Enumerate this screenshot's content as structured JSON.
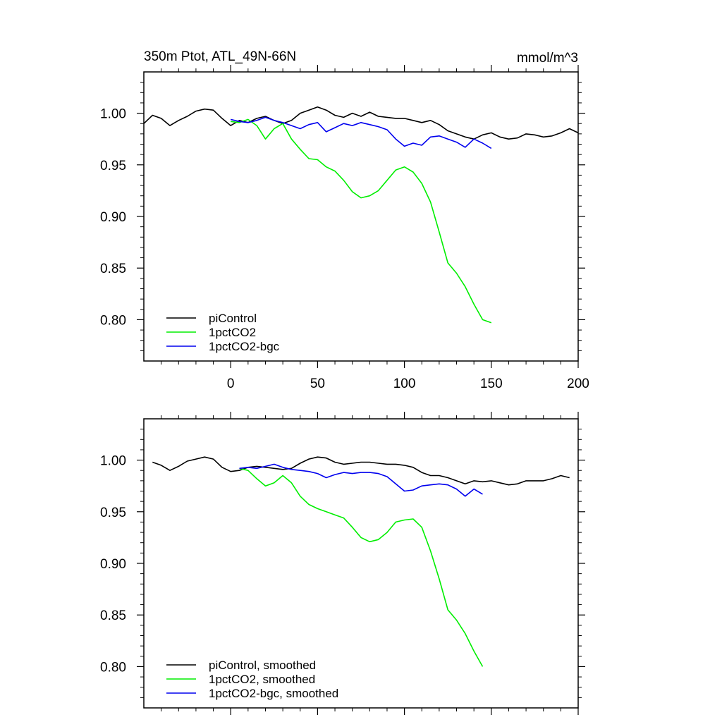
{
  "chart_data": [
    {
      "type": "line",
      "title": "350m Ptot, ATL_49N-66N",
      "units": "mmol/m^3",
      "xlim": [
        -50,
        200
      ],
      "ylim": [
        0.76,
        1.04
      ],
      "xticks": [
        0,
        50,
        100,
        150,
        200
      ],
      "yticks": [
        0.8,
        0.85,
        0.9,
        0.95,
        1.0
      ],
      "ytick_labels": [
        "0.80",
        "0.85",
        "0.90",
        "0.95",
        "1.00"
      ],
      "legend_position": "bottom-left",
      "series": [
        {
          "name": "piControl",
          "color": "#000000",
          "x": [
            -50,
            -45,
            -40,
            -35,
            -30,
            -25,
            -20,
            -15,
            -10,
            -5,
            0,
            5,
            10,
            15,
            20,
            25,
            30,
            35,
            40,
            45,
            50,
            55,
            60,
            65,
            70,
            75,
            80,
            85,
            90,
            95,
            100,
            105,
            110,
            115,
            120,
            125,
            130,
            135,
            140,
            145,
            150,
            155,
            160,
            165,
            170,
            175,
            180,
            185,
            190,
            195,
            200
          ],
          "values": [
            0.99,
            0.998,
            0.995,
            0.988,
            0.993,
            0.997,
            1.002,
            1.004,
            1.003,
            0.995,
            0.988,
            0.993,
            0.991,
            0.995,
            0.997,
            0.993,
            0.99,
            0.993,
            1.0,
            1.003,
            1.006,
            1.003,
            0.998,
            0.996,
            1.0,
            0.997,
            1.001,
            0.997,
            0.996,
            0.995,
            0.995,
            0.993,
            0.991,
            0.993,
            0.989,
            0.983,
            0.98,
            0.977,
            0.975,
            0.979,
            0.981,
            0.977,
            0.975,
            0.976,
            0.98,
            0.979,
            0.977,
            0.978,
            0.981,
            0.985,
            0.981
          ]
        },
        {
          "name": "1pctCO2",
          "color": "#00ee00",
          "x": [
            0,
            5,
            10,
            15,
            20,
            25,
            30,
            35,
            40,
            45,
            50,
            55,
            60,
            65,
            70,
            75,
            80,
            85,
            90,
            95,
            100,
            105,
            110,
            115,
            120,
            125,
            130,
            135,
            140,
            145,
            150
          ],
          "values": [
            0.992,
            0.991,
            0.994,
            0.988,
            0.975,
            0.985,
            0.99,
            0.975,
            0.965,
            0.956,
            0.955,
            0.948,
            0.944,
            0.935,
            0.924,
            0.918,
            0.92,
            0.925,
            0.935,
            0.945,
            0.948,
            0.943,
            0.932,
            0.914,
            0.885,
            0.855,
            0.845,
            0.832,
            0.815,
            0.8,
            0.797
          ]
        },
        {
          "name": "1pctCO2-bgc",
          "color": "#0000ee",
          "x": [
            0,
            5,
            10,
            15,
            20,
            25,
            30,
            35,
            40,
            45,
            50,
            55,
            60,
            65,
            70,
            75,
            80,
            85,
            90,
            95,
            100,
            105,
            110,
            115,
            120,
            125,
            130,
            135,
            140,
            145,
            150
          ],
          "values": [
            0.994,
            0.992,
            0.991,
            0.993,
            0.996,
            0.993,
            0.991,
            0.988,
            0.985,
            0.989,
            0.991,
            0.982,
            0.986,
            0.99,
            0.988,
            0.991,
            0.989,
            0.987,
            0.984,
            0.975,
            0.968,
            0.971,
            0.969,
            0.977,
            0.978,
            0.975,
            0.972,
            0.967,
            0.975,
            0.971,
            0.966
          ]
        }
      ]
    },
    {
      "type": "line",
      "xlim": [
        -50,
        200
      ],
      "ylim": [
        0.76,
        1.04
      ],
      "xticks": [
        0,
        50,
        100,
        150,
        200
      ],
      "yticks": [
        0.8,
        0.85,
        0.9,
        0.95,
        1.0
      ],
      "ytick_labels": [
        "0.80",
        "0.85",
        "0.90",
        "0.95",
        "1.00"
      ],
      "legend_position": "bottom-left",
      "series": [
        {
          "name": "piControl, smoothed",
          "color": "#000000",
          "x": [
            -45,
            -40,
            -35,
            -30,
            -25,
            -20,
            -15,
            -10,
            -5,
            0,
            5,
            10,
            15,
            20,
            25,
            30,
            35,
            40,
            45,
            50,
            55,
            60,
            65,
            70,
            75,
            80,
            85,
            90,
            95,
            100,
            105,
            110,
            115,
            120,
            125,
            130,
            135,
            140,
            145,
            150,
            155,
            160,
            165,
            170,
            175,
            180,
            185,
            190,
            195
          ],
          "values": [
            0.998,
            0.995,
            0.99,
            0.994,
            0.999,
            1.001,
            1.003,
            1.001,
            0.993,
            0.989,
            0.99,
            0.993,
            0.994,
            0.993,
            0.992,
            0.991,
            0.992,
            0.997,
            1.001,
            1.003,
            1.002,
            0.998,
            0.996,
            0.997,
            0.998,
            0.998,
            0.997,
            0.996,
            0.996,
            0.995,
            0.993,
            0.988,
            0.985,
            0.985,
            0.983,
            0.98,
            0.977,
            0.98,
            0.979,
            0.98,
            0.978,
            0.976,
            0.977,
            0.98,
            0.98,
            0.98,
            0.982,
            0.985,
            0.983
          ]
        },
        {
          "name": "1pctCO2, smoothed",
          "color": "#00ee00",
          "x": [
            5,
            10,
            15,
            20,
            25,
            30,
            35,
            40,
            45,
            50,
            55,
            60,
            65,
            70,
            75,
            80,
            85,
            90,
            95,
            100,
            105,
            110,
            115,
            120,
            125,
            130,
            135,
            140,
            145
          ],
          "values": [
            0.992,
            0.99,
            0.982,
            0.975,
            0.978,
            0.985,
            0.978,
            0.965,
            0.957,
            0.953,
            0.95,
            0.947,
            0.944,
            0.935,
            0.925,
            0.921,
            0.923,
            0.93,
            0.94,
            0.942,
            0.943,
            0.935,
            0.912,
            0.885,
            0.855,
            0.845,
            0.832,
            0.815,
            0.8
          ]
        },
        {
          "name": "1pctCO2-bgc, smoothed",
          "color": "#0000ee",
          "x": [
            5,
            10,
            15,
            20,
            25,
            30,
            35,
            40,
            45,
            50,
            55,
            60,
            65,
            70,
            75,
            80,
            85,
            90,
            95,
            100,
            105,
            110,
            115,
            120,
            125,
            130,
            135,
            140,
            145
          ],
          "values": [
            0.992,
            0.993,
            0.992,
            0.994,
            0.996,
            0.993,
            0.991,
            0.99,
            0.989,
            0.987,
            0.983,
            0.986,
            0.988,
            0.987,
            0.988,
            0.988,
            0.987,
            0.984,
            0.977,
            0.97,
            0.971,
            0.975,
            0.976,
            0.977,
            0.976,
            0.972,
            0.965,
            0.972,
            0.967
          ]
        }
      ]
    }
  ]
}
